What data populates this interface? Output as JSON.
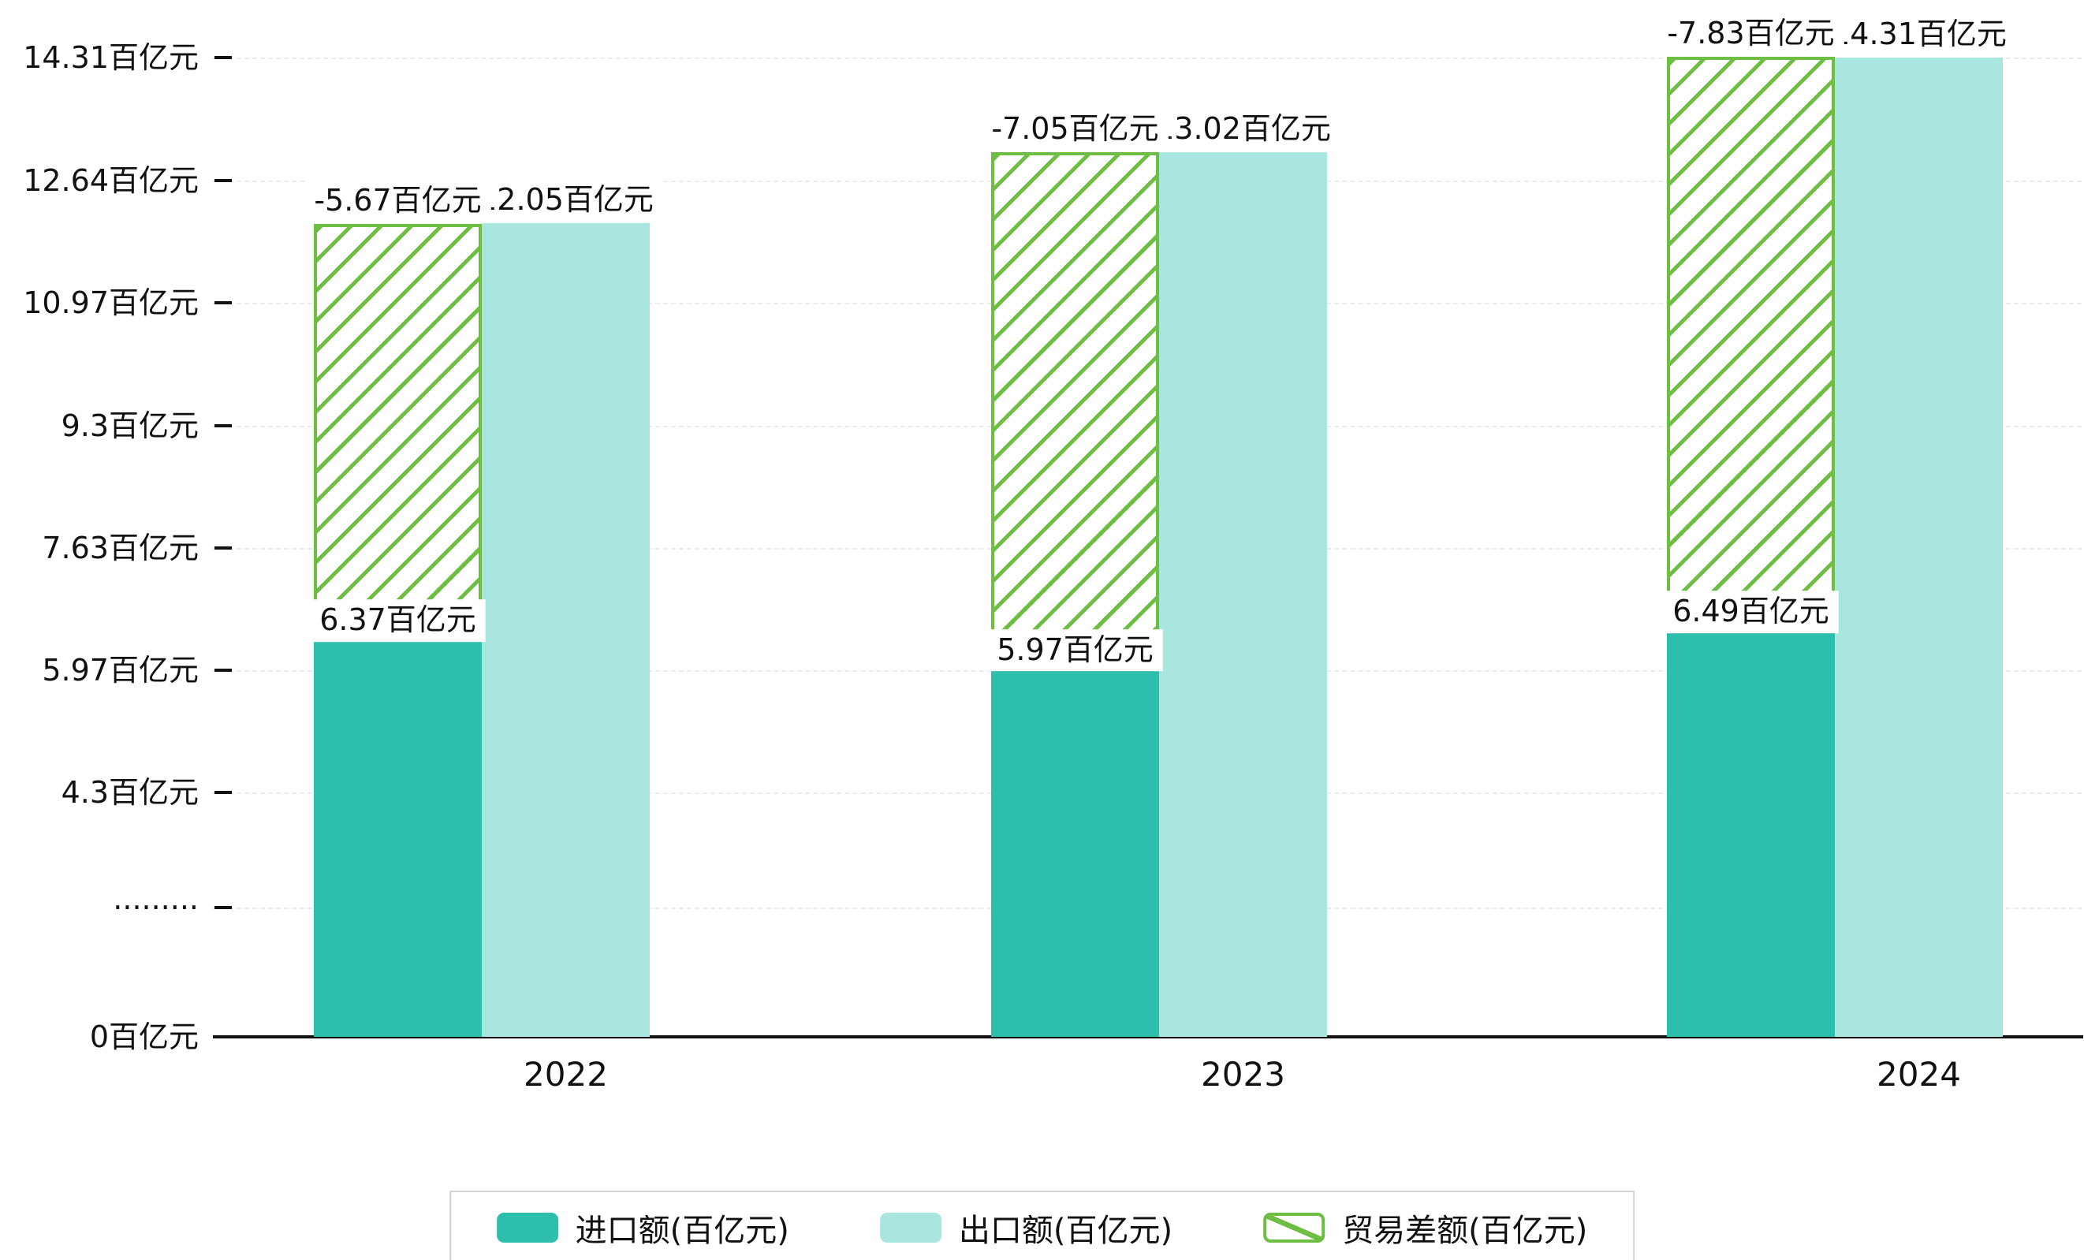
{
  "chart_data": {
    "type": "bar",
    "title": "",
    "unit": "百亿元",
    "categories": [
      "2022",
      "2023",
      "2024"
    ],
    "series": [
      {
        "name": "进口额(百亿元)",
        "type": "bar",
        "style": "solid",
        "color": "#2EBFAC",
        "values": [
          6.37,
          5.97,
          6.49
        ],
        "point_labels": [
          "6.37百亿元",
          "5.97百亿元",
          "6.49百亿元"
        ]
      },
      {
        "name": "出口额(百亿元)",
        "type": "bar",
        "style": "solid",
        "color": "#A8E6DF",
        "values": [
          12.05,
          13.02,
          14.31
        ],
        "point_labels": [
          "12.05百亿元",
          "13.02百亿元",
          "14.31百亿元"
        ]
      },
      {
        "name": "贸易差额(百亿元)",
        "type": "bar",
        "style": "hatched",
        "color": "#6FBE44",
        "values": [
          -5.67,
          -7.05,
          -7.83
        ],
        "point_labels": [
          "-5.67百亿元",
          "-7.05百亿元",
          "-7.83百亿元"
        ]
      }
    ],
    "y_axis": {
      "ticks": [
        {
          "label": "14.31百亿元",
          "value": 14.31
        },
        {
          "label": "12.64百亿元",
          "value": 12.64
        },
        {
          "label": "10.97百亿元",
          "value": 10.97
        },
        {
          "label": "9.3百亿元",
          "value": 9.3
        },
        {
          "label": "7.63百亿元",
          "value": 7.63
        },
        {
          "label": "5.97百亿元",
          "value": 5.97
        },
        {
          "label": "4.3百亿元",
          "value": 4.3
        },
        {
          "label": "·········",
          "value": null
        },
        {
          "label": "0百亿元",
          "value": 0
        }
      ],
      "axis_break": true
    },
    "x_axis": {
      "labels": [
        "2022",
        "2023",
        "2024"
      ]
    },
    "legend_position": "bottom",
    "grid": true
  },
  "colors": {
    "axis": "#111111",
    "grid": "#ececec",
    "label_bg": "#ffffff",
    "import_bar": "#2EBFAC",
    "export_bar": "#A8E6DF",
    "balance_hatch": "#6FBE44",
    "legend_border": "#d4d4d4"
  }
}
